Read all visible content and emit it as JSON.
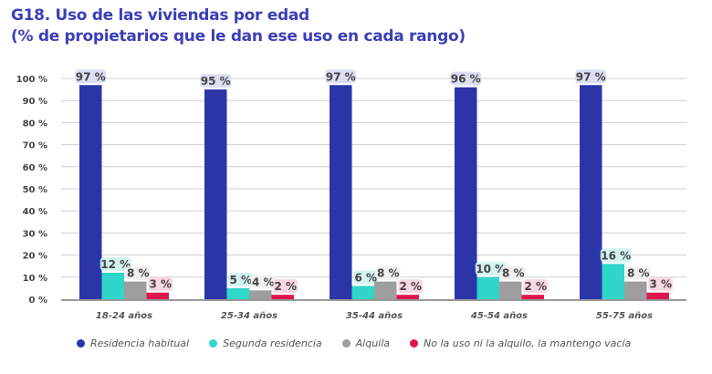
{
  "title_line1": "G18. Uso de las viviendas por edad",
  "title_line2": "(% de propietarios que le dan ese uso en cada rango)",
  "chart_data": {
    "type": "bar",
    "categories": [
      "18-24 años",
      "25-34 años",
      "35-44 años",
      "45-54 años",
      "55-75 años"
    ],
    "series": [
      {
        "name": "Residencia habitual",
        "color": "#2b35a8",
        "label_bg": "#d8daf2",
        "values": [
          97,
          95,
          97,
          96,
          97
        ]
      },
      {
        "name": "Segunda residencia",
        "color": "#2fd6c9",
        "label_bg": "#cdf3ef",
        "values": [
          12,
          5,
          6,
          10,
          16
        ]
      },
      {
        "name": "Alquila",
        "color": "#9e9e9e",
        "label_bg": "#efefef",
        "values": [
          8,
          4,
          8,
          8,
          8
        ]
      },
      {
        "name": "No la uso ni la alquilo, la mantengo vacía",
        "color": "#e0174f",
        "label_bg": "#f8d3de",
        "values": [
          3,
          2,
          2,
          2,
          3
        ]
      }
    ],
    "yticks": [
      "0 %",
      "10 %",
      "20 %",
      "30 %",
      "40 %",
      "50 %",
      "60 %",
      "70 %",
      "80 %",
      "90 %",
      "100 %"
    ],
    "ylim": [
      0,
      100
    ],
    "grid": true,
    "legend": "bottom"
  }
}
